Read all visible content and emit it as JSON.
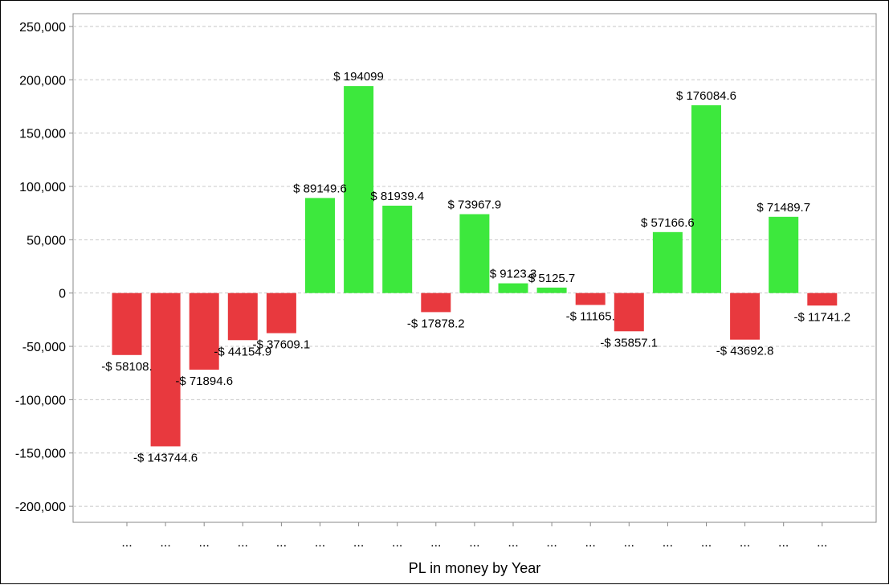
{
  "chart_data": {
    "type": "bar",
    "title": "",
    "xlabel": "PL in money by Year",
    "ylabel": "",
    "ylim": [
      -215000,
      262000
    ],
    "yticks": [
      250000,
      200000,
      150000,
      100000,
      50000,
      0,
      -50000,
      -100000,
      -150000,
      -200000
    ],
    "ytick_labels": [
      "250,000",
      "200,000",
      "150,000",
      "100,000",
      "50,000",
      "0",
      "-50,000",
      "-100,000",
      "-150,000",
      "-200,000"
    ],
    "grid": true,
    "legend": "none",
    "categories": [
      "...",
      "...",
      "...",
      "...",
      "...",
      "...",
      "...",
      "...",
      "...",
      "...",
      "...",
      "...",
      "...",
      "...",
      "...",
      "...",
      "...",
      "...",
      "..."
    ],
    "values": [
      -58108,
      -143744.6,
      -71894.6,
      -44154.9,
      -37609.1,
      89149.6,
      194099,
      81939.4,
      -17878.2,
      73967.9,
      9123.3,
      5125.7,
      -11165,
      -35857.1,
      57166.6,
      176084.6,
      -43692.8,
      71489.7,
      -11741.2
    ],
    "data_labels": [
      "-$ 58108.",
      "-$ 143744.6",
      "-$ 71894.6",
      "-$ 44154.9",
      "-$ 37609.1",
      "$ 89149.6",
      "$ 194099",
      "$ 81939.4",
      "-$ 17878.2",
      "$ 73967.9",
      "$ 9123.3",
      "$ 5125.7",
      "-$ 11165.",
      "-$ 35857.1",
      "$ 57166.6",
      "$ 176084.6",
      "-$ 43692.8",
      "$ 71489.7",
      "-$ 11741.2"
    ],
    "colors": {
      "positive": "#3DE83D",
      "negative": "#E8393E",
      "grid": "#C8C8C8",
      "axis": "#888888"
    }
  }
}
